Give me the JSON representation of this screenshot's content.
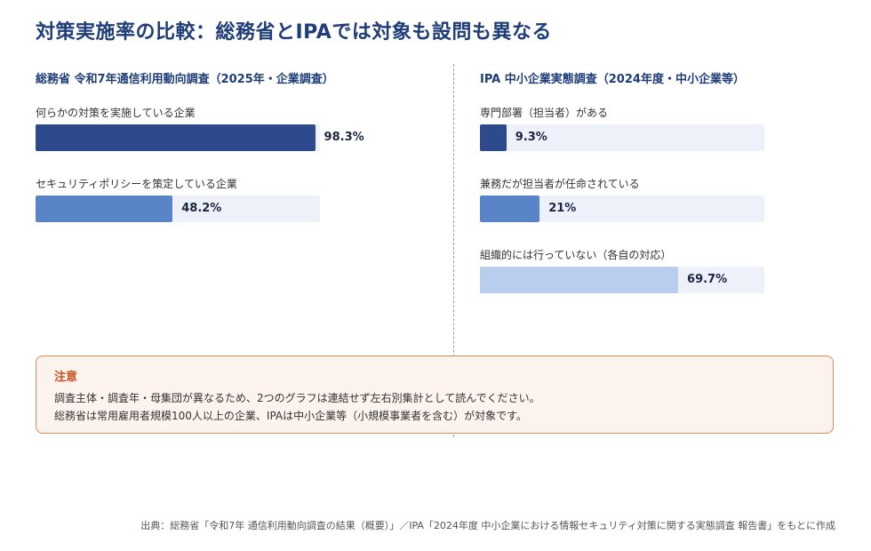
{
  "title": "対策実施率の比較：総務省とIPAでは対象も設問も異なる",
  "chart_data": [
    {
      "type": "bar",
      "title": "総務省 令和7年通信利用動向調査（2025年・企業調査）",
      "categories": [
        "何らかの対策を実施している企業",
        "セキュリティポリシーを策定している企業"
      ],
      "values": [
        98.3,
        48.2
      ],
      "value_labels": [
        "98.3%",
        "48.2%"
      ],
      "colors": [
        "#2c4a8c",
        "#5a84c8"
      ],
      "ylim": [
        0,
        100
      ]
    },
    {
      "type": "bar",
      "title": "IPA 中小企業実態調査（2024年度・中小企業等）",
      "categories": [
        "専門部署（担当者）がある",
        "兼務だが担当者が任命されている",
        "組織的には行っていない（各自の対応）"
      ],
      "values": [
        9.3,
        21,
        69.7
      ],
      "value_labels": [
        "9.3%",
        "21%",
        "69.7%"
      ],
      "colors": [
        "#2c4a8c",
        "#5a84c8",
        "#b9cdee"
      ],
      "ylim": [
        0,
        100
      ]
    }
  ],
  "note": {
    "title": "注意",
    "line1": "調査主体・調査年・母集団が異なるため、2つのグラフは連結せず左右別集計として読んでください。",
    "line2": "総務省は常用雇用者規模100人以上の企業、IPAは中小企業等（小規模事業者を含む）が対象です。"
  },
  "source": "出典：総務省「令和7年 通信利用動向調査の結果（概要）」／IPA「2024年度 中小企業における情報セキュリティ対策に関する実態調査 報告書」をもとに作成"
}
